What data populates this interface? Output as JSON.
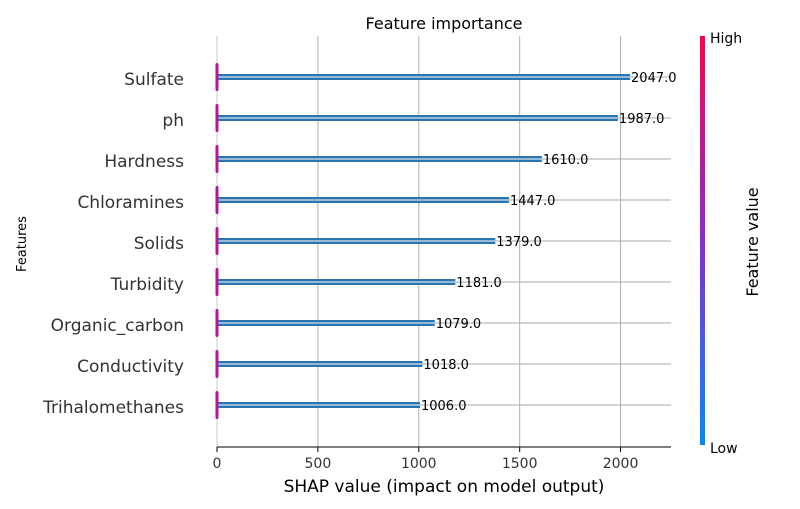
{
  "chart_data": {
    "type": "bar",
    "orientation": "horizontal",
    "title": "Feature importance",
    "xlabel": "SHAP value (impact on model output)",
    "ylabel": "Features",
    "xlim": [
      0,
      2250
    ],
    "xticks": [
      0,
      500,
      1000,
      1500,
      2000
    ],
    "grid": true,
    "categories": [
      "Sulfate",
      "ph",
      "Hardness",
      "Chloramines",
      "Solids",
      "Turbidity",
      "Organic_carbon",
      "Conductivity",
      "Trihalomethanes"
    ],
    "values": [
      2047.0,
      1987.0,
      1610.0,
      1447.0,
      1379.0,
      1181.0,
      1079.0,
      1018.0,
      1006.0
    ],
    "value_labels": [
      "2047.0",
      "1987.0",
      "1610.0",
      "1447.0",
      "1379.0",
      "1181.0",
      "1079.0",
      "1018.0",
      "1006.0"
    ],
    "bar_color": "#2a75b0",
    "marker_color": "#b0199b",
    "colorbar": {
      "label": "Feature value",
      "high_label": "High",
      "low_label": "Low",
      "high_color": "#ff0052",
      "mid_color": "#8a2ccf",
      "low_color": "#008bfb"
    }
  }
}
